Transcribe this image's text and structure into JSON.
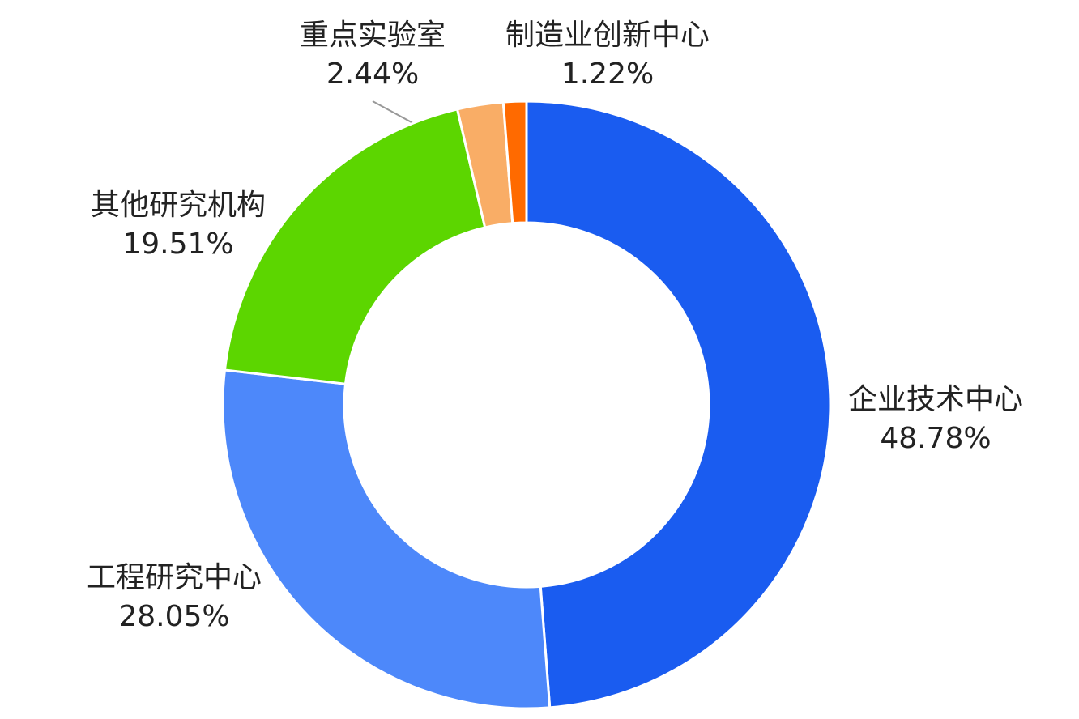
{
  "chart_data": {
    "type": "pie",
    "categories": [
      "企业技术中心",
      "工程研究中心",
      "其他研究机构",
      "重点实验室",
      "制造业创新中心"
    ],
    "values": [
      48.78,
      28.05,
      19.51,
      2.44,
      1.22
    ],
    "value_labels": [
      "48.78%",
      "28.05%",
      "19.51%",
      "2.44%",
      "1.22%"
    ],
    "colors": [
      "#1a5cf0",
      "#4d88fa",
      "#5cd600",
      "#f9ad66",
      "#ff6a00"
    ]
  }
}
